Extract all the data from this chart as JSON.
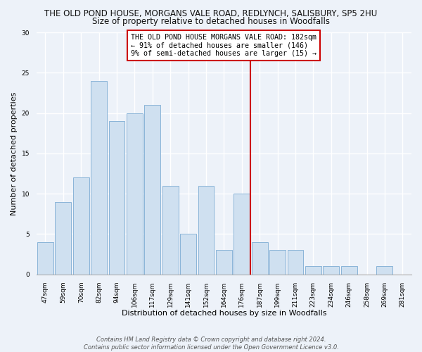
{
  "title": "THE OLD POND HOUSE, MORGANS VALE ROAD, REDLYNCH, SALISBURY, SP5 2HU",
  "subtitle": "Size of property relative to detached houses in Woodfalls",
  "xlabel": "Distribution of detached houses by size in Woodfalls",
  "ylabel": "Number of detached properties",
  "bar_labels": [
    "47sqm",
    "59sqm",
    "70sqm",
    "82sqm",
    "94sqm",
    "106sqm",
    "117sqm",
    "129sqm",
    "141sqm",
    "152sqm",
    "164sqm",
    "176sqm",
    "187sqm",
    "199sqm",
    "211sqm",
    "223sqm",
    "234sqm",
    "246sqm",
    "258sqm",
    "269sqm",
    "281sqm"
  ],
  "bar_heights": [
    4,
    9,
    12,
    24,
    19,
    20,
    21,
    11,
    5,
    11,
    3,
    10,
    4,
    3,
    3,
    1,
    1,
    1,
    0,
    1,
    0
  ],
  "bar_color": "#cfe0f0",
  "bar_edge_color": "#8ab4d8",
  "ref_line_index": 11.5,
  "annotation_text_line1": "THE OLD POND HOUSE MORGANS VALE ROAD: 182sqm",
  "annotation_text_line2": "← 91% of detached houses are smaller (146)",
  "annotation_text_line3": "9% of semi-detached houses are larger (15) →",
  "annotation_box_color": "#ffffff",
  "annotation_box_edge_color": "#cc0000",
  "reference_line_color": "#cc0000",
  "ylim": [
    0,
    30
  ],
  "yticks": [
    0,
    5,
    10,
    15,
    20,
    25,
    30
  ],
  "footer_line1": "Contains HM Land Registry data © Crown copyright and database right 2024.",
  "footer_line2": "Contains public sector information licensed under the Open Government Licence v3.0.",
  "bg_color": "#edf2f9",
  "grid_color": "#ffffff",
  "title_fontsize": 8.5,
  "subtitle_fontsize": 8.5,
  "axis_label_fontsize": 8,
  "tick_fontsize": 6.5,
  "annotation_fontsize": 7.2,
  "footer_fontsize": 6
}
